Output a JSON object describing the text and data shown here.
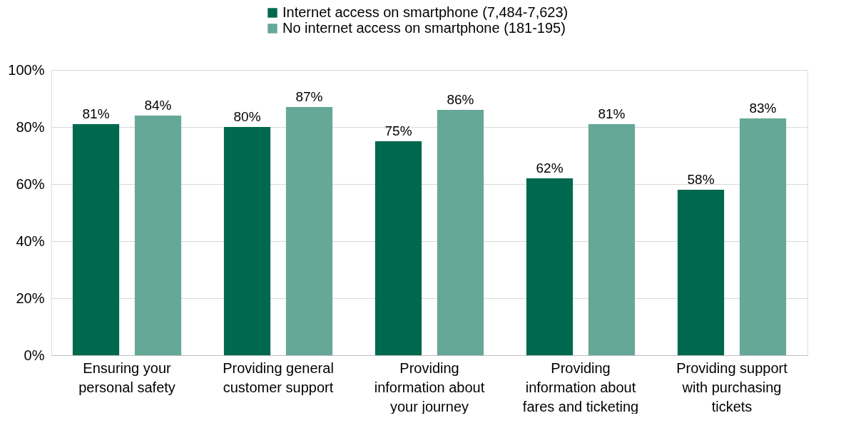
{
  "chart_data": {
    "type": "bar",
    "categories": [
      "Ensuring your personal safety",
      "Providing general customer support",
      "Providing information about your journey",
      "Providing information about fares and ticketing",
      "Providing support with purchasing tickets"
    ],
    "series": [
      {
        "name": "Internet access on smartphone (7,484-7,623)",
        "color": "#00684f",
        "values": [
          81,
          80,
          75,
          62,
          58
        ]
      },
      {
        "name": "No internet access on smartphone (181-195)",
        "color": "#66a898",
        "values": [
          84,
          87,
          86,
          81,
          83
        ]
      }
    ],
    "value_labels": [
      [
        "81%",
        "80%",
        "75%",
        "62%",
        "58%"
      ],
      [
        "84%",
        "87%",
        "86%",
        "81%",
        "83%"
      ]
    ],
    "ylim": [
      0,
      100
    ],
    "yticks": [
      {
        "value": 0,
        "label": "0%"
      },
      {
        "value": 20,
        "label": "20%"
      },
      {
        "value": 40,
        "label": "40%"
      },
      {
        "value": 60,
        "label": "60%"
      },
      {
        "value": 80,
        "label": "80%"
      },
      {
        "value": 100,
        "label": "100%"
      }
    ],
    "grid": "y",
    "legend": "top"
  }
}
